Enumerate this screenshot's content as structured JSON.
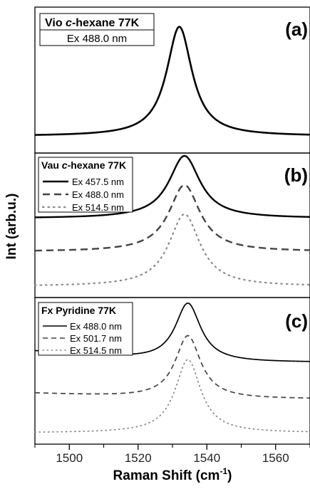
{
  "chart_data": [
    {
      "panel": "(a)",
      "type": "line",
      "legend_title_parts": [
        "Vio ",
        "c",
        "-hexane 77K"
      ],
      "legend_placement": "top-left",
      "xlim": [
        1490,
        1570
      ],
      "ylim": [
        0,
        1
      ],
      "series": [
        {
          "name": "Ex 488.0 nm",
          "color": "#000000",
          "dash": "solid",
          "baseline": 0.1,
          "peak_x": 1532,
          "peak_height": 0.78,
          "hwhm": 4.5,
          "left_offset": 0.0,
          "right_offset": 0.0
        }
      ]
    },
    {
      "panel": "(b)",
      "type": "line",
      "legend_title_parts": [
        "Vau ",
        "c",
        "-hexane 77K"
      ],
      "legend_placement": "top-left",
      "xlim": [
        1490,
        1570
      ],
      "ylim": [
        0,
        1
      ],
      "series": [
        {
          "name": "Ex 457.5 nm",
          "color": "#000000",
          "dash": "solid",
          "baseline": 0.55,
          "peak_x": 1533.5,
          "peak_height": 0.45,
          "hwhm": 5.5,
          "left_offset": 0.0,
          "right_offset": 0.0
        },
        {
          "name": "Ex 488.0 nm",
          "color": "#444444",
          "dash": "dashed",
          "baseline": 0.31,
          "peak_x": 1533.5,
          "peak_height": 0.48,
          "hwhm": 5.5,
          "left_offset": 0.0,
          "right_offset": 0.0
        },
        {
          "name": "Ex 514.5 nm",
          "color": "#888888",
          "dash": "dotted",
          "baseline": 0.06,
          "peak_x": 1533.5,
          "peak_height": 0.52,
          "hwhm": 5.5,
          "left_offset": 0.0,
          "right_offset": 0.0
        }
      ]
    },
    {
      "panel": "(c)",
      "type": "line",
      "legend_title_parts": [
        "Fx Pyridine 77K"
      ],
      "legend_placement": "top-left",
      "xlim": [
        1490,
        1570
      ],
      "ylim": [
        0,
        1
      ],
      "x_ticks": [
        1500,
        1520,
        1540,
        1560
      ],
      "x_minor_ticks": [
        1490,
        1510,
        1530,
        1550,
        1570
      ],
      "x_tick_labels": [
        "1500",
        "1520",
        "1540",
        "1560"
      ],
      "xlabel_base": "Raman Shift (cm",
      "xlabel_sup": "-1",
      "xlabel_end": ")",
      "series": [
        {
          "name": "Ex 488.0 nm",
          "color": "#000000",
          "dash": "solid",
          "baseline": 0.56,
          "peak_x": 1534.5,
          "peak_height": 0.42,
          "hwhm": 4.5,
          "left_offset": 0.08,
          "right_offset": 0.0
        },
        {
          "name": "Ex 501.7 nm",
          "color": "#444444",
          "dash": "dashed",
          "baseline": 0.3,
          "peak_x": 1534.5,
          "peak_height": 0.45,
          "hwhm": 4.5,
          "left_offset": 0.04,
          "right_offset": 0.0
        },
        {
          "name": "Ex 514.5 nm",
          "color": "#888888",
          "dash": "dotted",
          "baseline": 0.06,
          "peak_x": 1534.5,
          "peak_height": 0.52,
          "hwhm": 4.5,
          "left_offset": 0.0,
          "right_offset": 0.0
        }
      ]
    }
  ],
  "ylabel": "Int (arb.u.)"
}
